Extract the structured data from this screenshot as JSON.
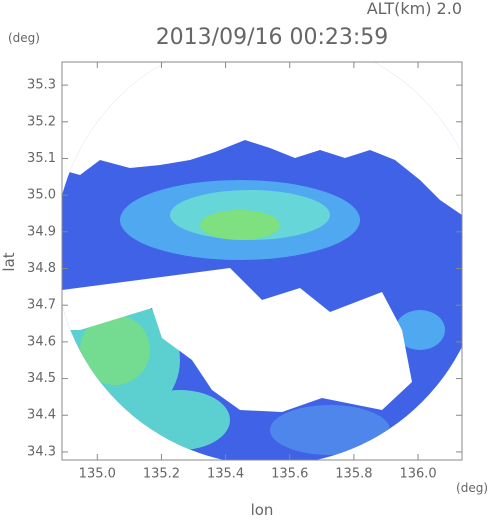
{
  "chart_data": {
    "type": "map",
    "altitude_label": "ALT(km) 2.0",
    "title": "2013/09/16 00:23:59",
    "y_unit": "(deg)",
    "x_unit": "(deg)",
    "y_label": "lat",
    "x_label": "lon",
    "xlim": [
      134.89,
      136.137
    ],
    "ylim": [
      34.278,
      35.363
    ],
    "xticks": [
      {
        "value": 135,
        "label": "135.0"
      },
      135.2,
      135.4,
      135.6,
      135.8,
      {
        "value": 136,
        "label": "136.0"
      }
    ],
    "yticks": [
      34.3,
      34.4,
      34.5,
      34.6,
      34.7,
      34.8,
      34.9,
      {
        "value": 35,
        "label": "35.0"
      },
      35.1,
      35.2,
      35.3
    ]
  }
}
